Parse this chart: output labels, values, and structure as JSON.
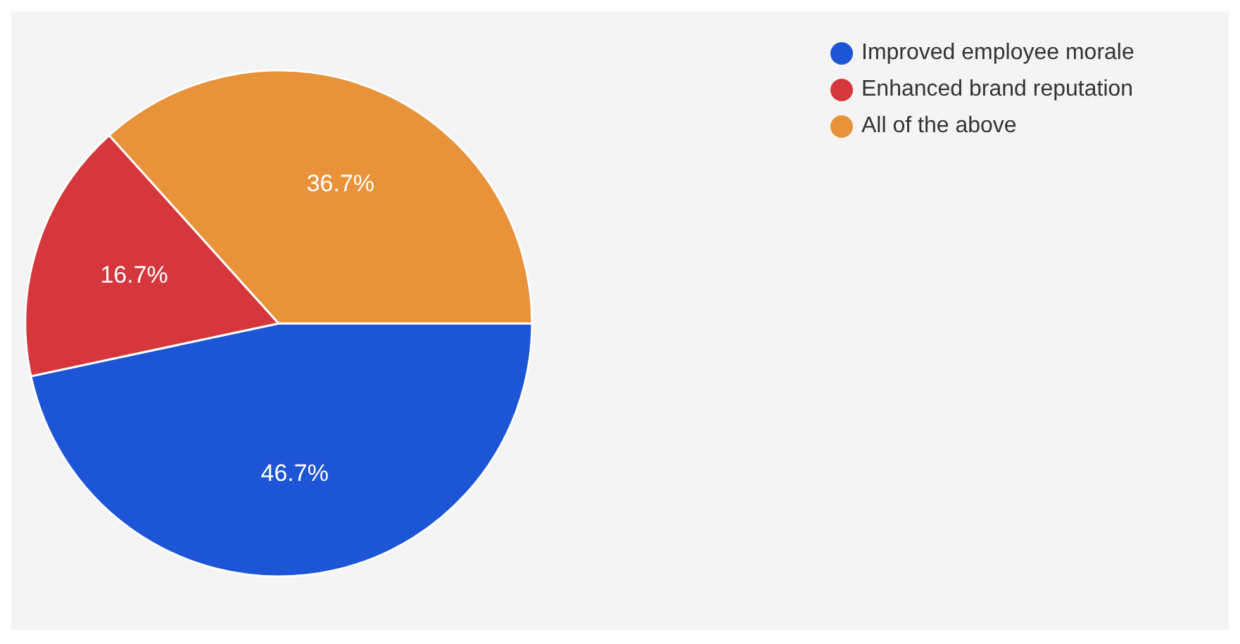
{
  "chart_data": {
    "type": "pie",
    "categories": [
      "Improved employee morale",
      "Enhanced brand reputation",
      "All of the above"
    ],
    "values": [
      46.7,
      16.7,
      36.7
    ],
    "colors": [
      "#1c55d6",
      "#d6373d",
      "#e8923a"
    ],
    "value_labels": [
      "46.7%",
      "16.7%",
      "36.7%"
    ],
    "legend": "top right"
  }
}
